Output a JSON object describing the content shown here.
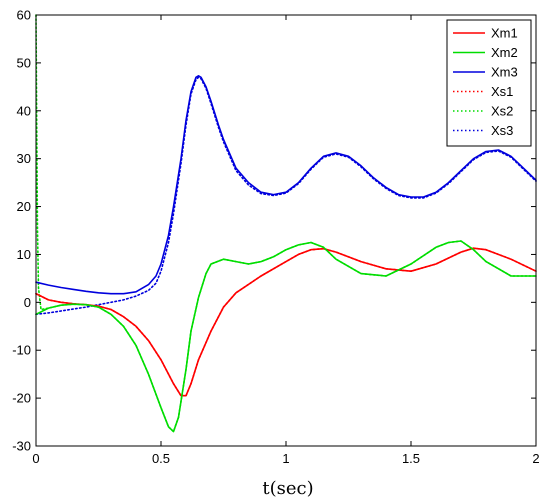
{
  "chart_data": {
    "type": "line",
    "xlabel": "t(sec)",
    "ylabel": "",
    "xlim": [
      0,
      2
    ],
    "ylim": [
      -30,
      60
    ],
    "xticks": [
      "0",
      "0.5",
      "1",
      "1.5",
      "2"
    ],
    "yticks": [
      "-30",
      "-20",
      "-10",
      "0",
      "10",
      "20",
      "30",
      "40",
      "50",
      "60"
    ],
    "legend_position": "top-right",
    "grid": false,
    "series": [
      {
        "name": "Xm1",
        "color": "#ff0000",
        "style": "solid",
        "x": [
          0,
          0.05,
          0.1,
          0.15,
          0.2,
          0.25,
          0.3,
          0.35,
          0.4,
          0.45,
          0.5,
          0.55,
          0.58,
          0.6,
          0.62,
          0.65,
          0.7,
          0.75,
          0.8,
          0.9,
          1.0,
          1.05,
          1.1,
          1.15,
          1.2,
          1.3,
          1.4,
          1.5,
          1.6,
          1.7,
          1.75,
          1.8,
          1.9,
          2.0
        ],
        "y": [
          1.8,
          0.5,
          0,
          -0.3,
          -0.5,
          -0.8,
          -1.5,
          -3,
          -5,
          -8,
          -12,
          -17,
          -19.5,
          -19.5,
          -17,
          -12,
          -6,
          -1,
          2,
          5.5,
          8.5,
          10,
          11,
          11.2,
          10.5,
          8.5,
          7,
          6.5,
          8,
          10.5,
          11.3,
          11,
          9,
          6.5
        ]
      },
      {
        "name": "Xm2",
        "color": "#00dd00",
        "style": "solid",
        "x": [
          0,
          0.05,
          0.1,
          0.15,
          0.2,
          0.25,
          0.3,
          0.35,
          0.4,
          0.45,
          0.5,
          0.53,
          0.55,
          0.57,
          0.6,
          0.62,
          0.65,
          0.68,
          0.7,
          0.75,
          0.8,
          0.85,
          0.9,
          0.95,
          1.0,
          1.05,
          1.1,
          1.15,
          1.2,
          1.3,
          1.4,
          1.5,
          1.6,
          1.65,
          1.7,
          1.75,
          1.8,
          1.9,
          2.0
        ],
        "y": [
          -2.5,
          -1.2,
          -0.6,
          -0.4,
          -0.5,
          -1,
          -2.5,
          -5,
          -9,
          -15,
          -22,
          -26,
          -27,
          -24,
          -14,
          -6,
          1,
          6,
          8,
          9,
          8.5,
          8,
          8.5,
          9.5,
          11,
          12,
          12.5,
          11.5,
          9,
          6,
          5.5,
          8,
          11.5,
          12.5,
          12.8,
          11,
          8.5,
          5.5,
          5.5
        ]
      },
      {
        "name": "Xm3",
        "color": "#0000dd",
        "style": "solid",
        "x": [
          0,
          0.05,
          0.1,
          0.15,
          0.2,
          0.25,
          0.3,
          0.35,
          0.4,
          0.45,
          0.48,
          0.5,
          0.53,
          0.55,
          0.58,
          0.6,
          0.62,
          0.64,
          0.65,
          0.66,
          0.68,
          0.7,
          0.73,
          0.75,
          0.8,
          0.85,
          0.9,
          0.95,
          1.0,
          1.05,
          1.1,
          1.15,
          1.2,
          1.25,
          1.3,
          1.35,
          1.4,
          1.45,
          1.5,
          1.55,
          1.6,
          1.65,
          1.7,
          1.75,
          1.8,
          1.85,
          1.9,
          1.95,
          2.0
        ],
        "y": [
          4.2,
          3.6,
          3.1,
          2.7,
          2.3,
          2,
          1.8,
          1.8,
          2.2,
          3.7,
          5.5,
          8,
          14,
          20,
          30,
          38,
          44,
          47,
          47.3,
          47,
          45,
          42,
          37,
          34,
          28,
          25,
          23,
          22.5,
          23,
          25,
          28,
          30.5,
          31.2,
          30.5,
          28.5,
          26,
          24,
          22.5,
          22,
          22,
          23,
          25,
          27.5,
          30,
          31.5,
          31.8,
          30.5,
          28,
          25.5
        ]
      },
      {
        "name": "Xs1",
        "color": "#ff0000",
        "style": "dotted",
        "x": [
          0,
          0.05,
          0.1,
          0.15,
          0.2,
          0.25,
          0.3,
          0.35,
          0.4,
          0.45,
          0.5,
          0.55,
          0.58,
          0.6,
          0.62,
          0.65,
          0.7,
          0.75,
          0.8,
          0.9,
          1.0,
          1.05,
          1.1,
          1.15,
          1.2,
          1.3,
          1.4,
          1.5,
          1.6,
          1.7,
          1.75,
          1.8,
          1.9,
          2.0
        ],
        "y": [
          1.8,
          0.5,
          0,
          -0.3,
          -0.5,
          -0.8,
          -1.5,
          -3,
          -5,
          -8,
          -12,
          -17,
          -19.5,
          -19.5,
          -17,
          -12,
          -6,
          -1,
          2,
          5.5,
          8.5,
          10,
          11,
          11.2,
          10.5,
          8.5,
          7,
          6.5,
          8,
          10.5,
          11.3,
          11,
          9,
          6.5
        ]
      },
      {
        "name": "Xs2",
        "color": "#00dd00",
        "style": "dotted",
        "x": [
          0,
          0.003,
          0.006,
          0.01,
          0.02,
          0.05,
          0.1,
          0.15,
          0.2,
          0.25,
          0.3,
          0.35,
          0.4,
          0.45,
          0.5,
          0.53,
          0.55,
          0.57,
          0.6,
          0.62,
          0.65,
          0.68,
          0.7,
          0.75,
          0.8,
          0.85,
          0.9,
          0.95,
          1.0,
          1.05,
          1.1,
          1.15,
          1.2,
          1.3,
          1.4,
          1.5,
          1.6,
          1.65,
          1.7,
          1.75,
          1.8,
          1.9,
          2.0
        ],
        "y": [
          60,
          35,
          15,
          3,
          -1.5,
          -1.2,
          -0.6,
          -0.4,
          -0.5,
          -1,
          -2.5,
          -5,
          -9,
          -15,
          -22,
          -26,
          -27,
          -24,
          -14,
          -6,
          1,
          6,
          8,
          9,
          8.5,
          8,
          8.5,
          9.5,
          11,
          12,
          12.5,
          11.5,
          9,
          6,
          5.5,
          8,
          11.5,
          12.5,
          12.8,
          11,
          8.5,
          5.5,
          5.5
        ]
      },
      {
        "name": "Xs3",
        "color": "#0000dd",
        "style": "dotted",
        "x": [
          0,
          0.05,
          0.1,
          0.15,
          0.2,
          0.25,
          0.3,
          0.35,
          0.4,
          0.45,
          0.48,
          0.5,
          0.53,
          0.55,
          0.58,
          0.6,
          0.62,
          0.64,
          0.65,
          0.66,
          0.68,
          0.7,
          0.73,
          0.75,
          0.8,
          0.85,
          0.9,
          0.95,
          1.0,
          1.05,
          1.1,
          1.15,
          1.2,
          1.25,
          1.3,
          1.35,
          1.4,
          1.45,
          1.5,
          1.55,
          1.6,
          1.65,
          1.7,
          1.75,
          1.8,
          1.85,
          1.9,
          1.95,
          2.0
        ],
        "y": [
          -2.5,
          -2.2,
          -1.8,
          -1.4,
          -1,
          -0.5,
          0,
          0.5,
          1.3,
          2.5,
          4,
          6.5,
          12.5,
          18.5,
          29,
          37,
          43.5,
          46.5,
          47,
          46.7,
          44.7,
          41.5,
          36.5,
          33.5,
          27.5,
          24.5,
          22.7,
          22.3,
          22.8,
          24.8,
          27.8,
          30.3,
          31,
          30.3,
          28.3,
          25.8,
          23.8,
          22.3,
          21.8,
          21.8,
          22.8,
          24.8,
          27.3,
          29.8,
          31.3,
          31.6,
          30.3,
          27.8,
          25.3
        ]
      }
    ]
  }
}
